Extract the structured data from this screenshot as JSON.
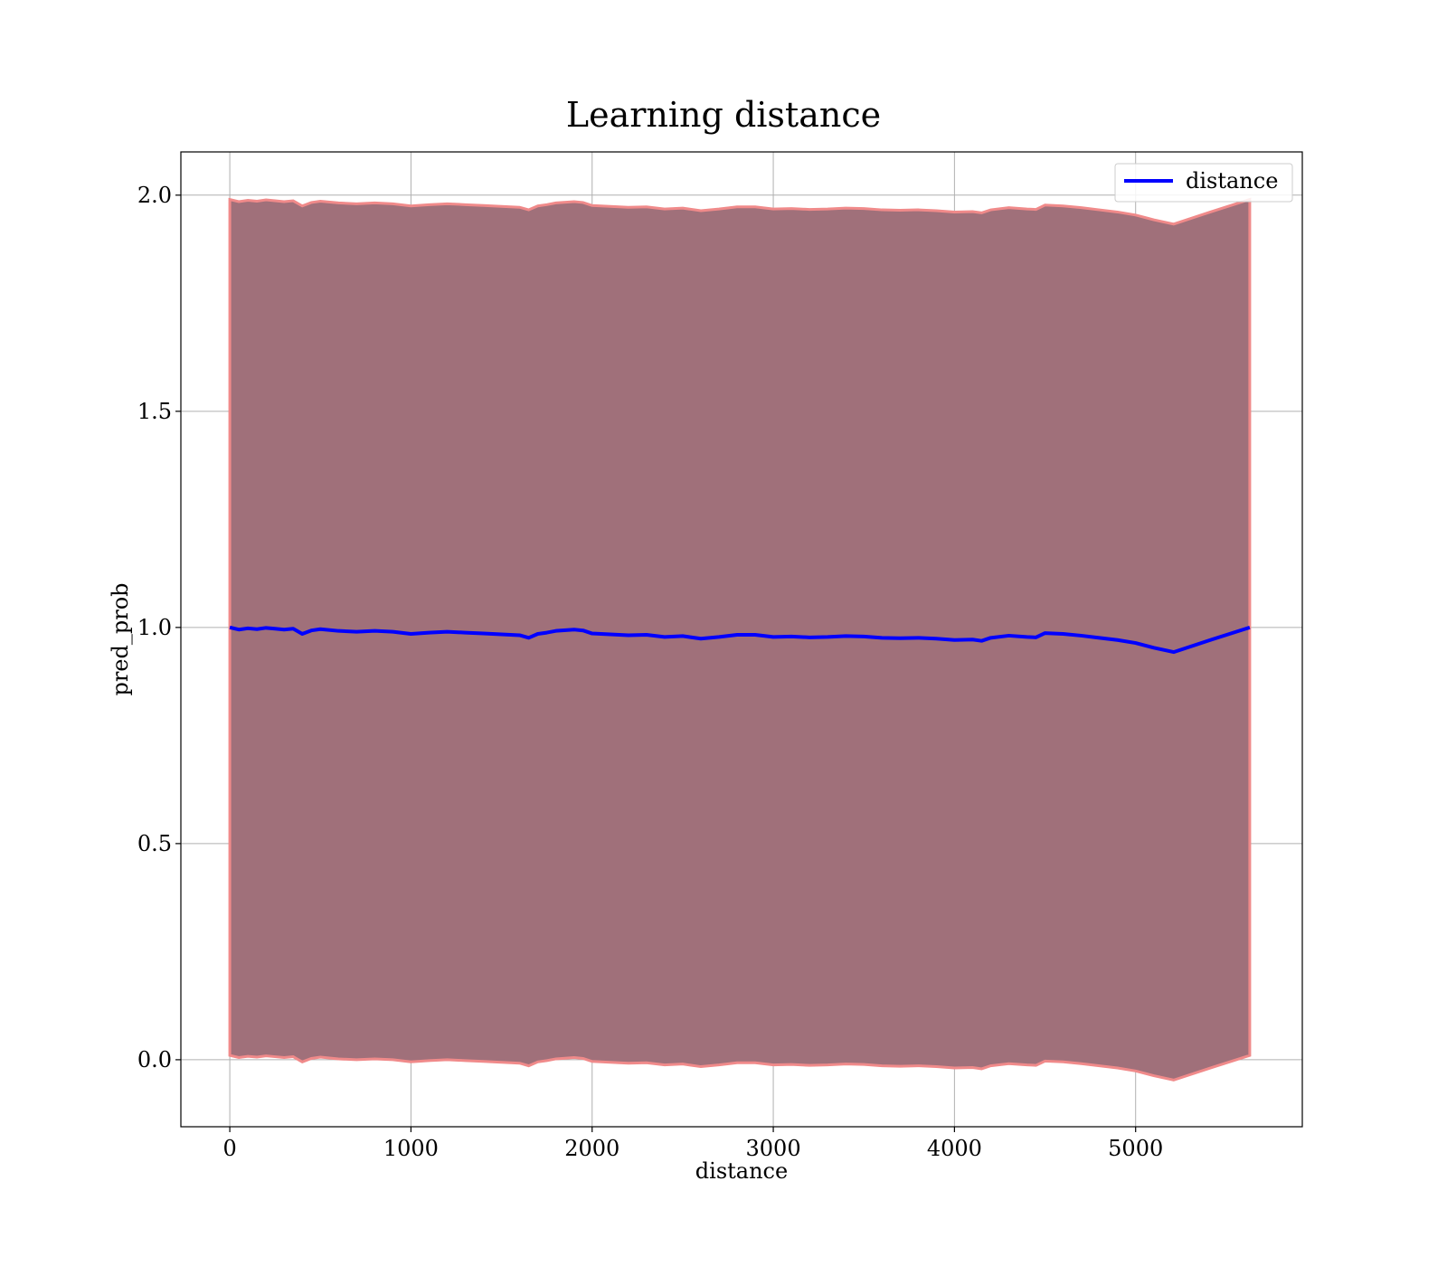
{
  "chart_data": {
    "type": "line",
    "title": "Learning distance",
    "xlabel": "distance",
    "ylabel": "pred_prob",
    "xlim": [
      -270,
      5920
    ],
    "ylim": [
      -0.155,
      2.1
    ],
    "xticks": [
      0,
      1000,
      2000,
      3000,
      4000,
      5000
    ],
    "xtick_labels": [
      "0",
      "1000",
      "2000",
      "3000",
      "4000",
      "5000"
    ],
    "yticks": [
      0.0,
      0.5,
      1.0,
      1.5,
      2.0
    ],
    "ytick_labels": [
      "0.0",
      "0.5",
      "1.0",
      "1.5",
      "2.0"
    ],
    "grid": true,
    "legend": {
      "position": "top-right",
      "entries": [
        "distance"
      ]
    },
    "colors": {
      "line": "#0000ff",
      "band_fill": "#a0707a",
      "band_edge": "#f08a8a",
      "grid": "#b0b0b0"
    },
    "series": [
      {
        "name": "distance",
        "x": [
          0,
          50,
          100,
          150,
          200,
          250,
          300,
          350,
          400,
          450,
          500,
          600,
          700,
          800,
          900,
          1000,
          1100,
          1200,
          1300,
          1400,
          1500,
          1600,
          1650,
          1700,
          1750,
          1800,
          1900,
          1950,
          2000,
          2100,
          2200,
          2300,
          2400,
          2500,
          2600,
          2700,
          2800,
          2900,
          3000,
          3100,
          3200,
          3300,
          3400,
          3500,
          3600,
          3700,
          3800,
          3900,
          4000,
          4100,
          4150,
          4200,
          4300,
          4400,
          4450,
          4500,
          4600,
          4700,
          4800,
          4900,
          5000,
          5100,
          5210,
          5420,
          5630
        ],
        "y": [
          1.0,
          0.995,
          0.998,
          0.996,
          0.999,
          0.997,
          0.995,
          0.997,
          0.985,
          0.993,
          0.996,
          0.992,
          0.99,
          0.992,
          0.99,
          0.985,
          0.988,
          0.99,
          0.988,
          0.986,
          0.984,
          0.982,
          0.976,
          0.985,
          0.988,
          0.992,
          0.995,
          0.993,
          0.986,
          0.984,
          0.982,
          0.983,
          0.978,
          0.98,
          0.974,
          0.978,
          0.983,
          0.983,
          0.978,
          0.979,
          0.977,
          0.978,
          0.98,
          0.979,
          0.976,
          0.975,
          0.976,
          0.974,
          0.971,
          0.972,
          0.969,
          0.976,
          0.981,
          0.978,
          0.977,
          0.987,
          0.985,
          0.981,
          0.976,
          0.971,
          0.964,
          0.953,
          0.943,
          0.972,
          1.0
        ],
        "band_upper": [
          1.99,
          1.985,
          1.988,
          1.986,
          1.989,
          1.987,
          1.985,
          1.987,
          1.975,
          1.983,
          1.986,
          1.982,
          1.98,
          1.982,
          1.98,
          1.975,
          1.978,
          1.98,
          1.978,
          1.976,
          1.974,
          1.972,
          1.966,
          1.975,
          1.978,
          1.982,
          1.985,
          1.983,
          1.976,
          1.974,
          1.972,
          1.973,
          1.968,
          1.97,
          1.964,
          1.968,
          1.973,
          1.973,
          1.968,
          1.969,
          1.967,
          1.968,
          1.97,
          1.969,
          1.966,
          1.965,
          1.966,
          1.964,
          1.961,
          1.962,
          1.959,
          1.966,
          1.971,
          1.968,
          1.967,
          1.977,
          1.975,
          1.971,
          1.966,
          1.961,
          1.954,
          1.943,
          1.933,
          1.962,
          1.99
        ],
        "band_lower": [
          0.01,
          0.005,
          0.008,
          0.006,
          0.009,
          0.007,
          0.005,
          0.007,
          -0.005,
          0.003,
          0.006,
          0.002,
          0.0,
          0.002,
          0.0,
          -0.005,
          -0.002,
          0.0,
          -0.002,
          -0.004,
          -0.006,
          -0.008,
          -0.014,
          -0.005,
          -0.002,
          0.002,
          0.005,
          0.003,
          -0.004,
          -0.006,
          -0.008,
          -0.007,
          -0.012,
          -0.01,
          -0.016,
          -0.012,
          -0.007,
          -0.007,
          -0.012,
          -0.011,
          -0.013,
          -0.012,
          -0.01,
          -0.011,
          -0.014,
          -0.015,
          -0.014,
          -0.016,
          -0.019,
          -0.018,
          -0.021,
          -0.014,
          -0.009,
          -0.012,
          -0.013,
          -0.003,
          -0.005,
          -0.009,
          -0.014,
          -0.019,
          -0.026,
          -0.037,
          -0.047,
          -0.018,
          0.01
        ]
      }
    ]
  }
}
